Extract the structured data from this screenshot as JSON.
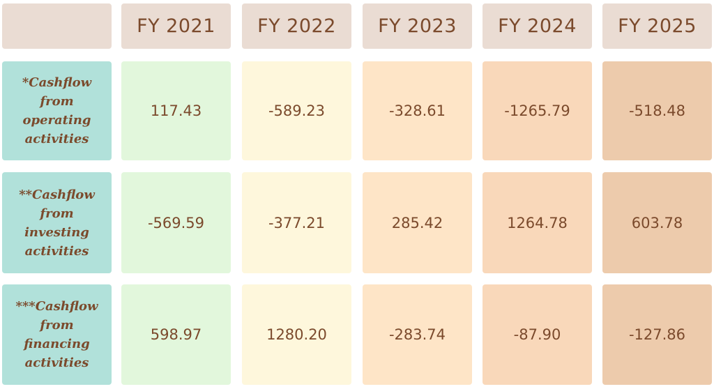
{
  "header": {
    "columns": [
      "FY 2021",
      "FY 2022",
      "FY 2023",
      "FY 2024",
      "FY 2025"
    ]
  },
  "table": {
    "rows": [
      {
        "label": "*Cashflow from operating activities",
        "values": [
          "117.43",
          "-589.23",
          "-328.61",
          "-1265.79",
          "-518.48"
        ]
      },
      {
        "label": "**Cashflow from investing activities",
        "values": [
          "-569.59",
          "-377.21",
          "285.42",
          "1264.78",
          "603.78"
        ]
      },
      {
        "label": "***Cashflow from financing activities",
        "values": [
          "598.97",
          "1280.20",
          "-283.74",
          "-87.90",
          "-127.86"
        ]
      }
    ]
  }
}
